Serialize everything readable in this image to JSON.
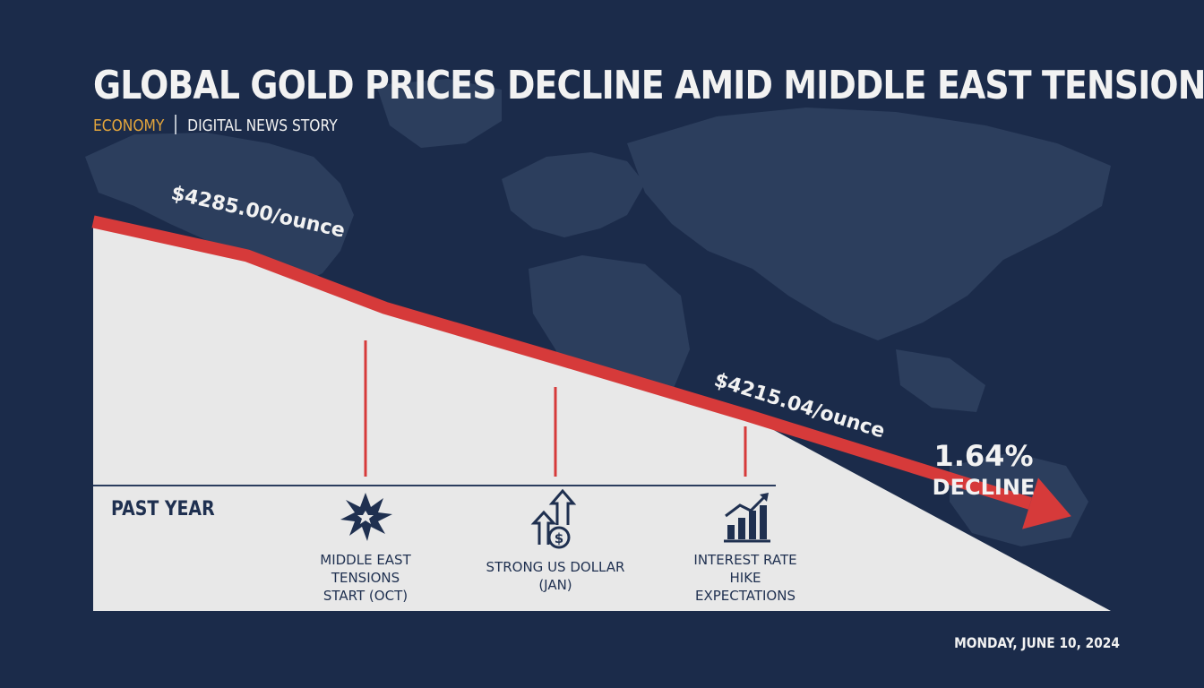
{
  "headline": "GLOBAL GOLD PRICES DECLINE AMID MIDDLE EAST TENSIONS",
  "category": "ECONOMY",
  "story_type": "DIGITAL NEWS STORY",
  "date": "MONDAY, JUNE 10, 2024",
  "colors": {
    "background": "#1b2b4a",
    "map": "#3a4c6b",
    "area_fill": "#e8e8e8",
    "trend_line": "#d63a3a",
    "text": "#f2f2f2",
    "category": "#e3a53c",
    "axis_text": "#1f3050"
  },
  "chart_data": {
    "type": "line",
    "title": "GLOBAL GOLD PRICES DECLINE AMID MIDDLE EAST TENSIONS",
    "period_label": "PAST YEAR",
    "series": [
      {
        "values": [
          4300.0,
          4285.0,
          4262.0,
          4240.0,
          4215.04,
          4176.0
        ]
      }
    ],
    "price_labels": [
      {
        "point_index": 1,
        "text": "$4285.00/ounce"
      },
      {
        "point_index": 4,
        "text": "$4215.04/ounce"
      }
    ],
    "change": {
      "value": "1.64%",
      "label": "DECLINE"
    },
    "events": [
      {
        "label_lines": [
          "MIDDLE EAST",
          "TENSIONS",
          "START (OCT)"
        ],
        "icon": "explosion-icon"
      },
      {
        "label_lines": [
          "STRONG US DOLLAR",
          "(JAN)"
        ],
        "icon": "dollar-growth-icon"
      },
      {
        "label_lines": [
          "INTEREST RATE",
          "HIKE",
          "EXPECTATIONS"
        ],
        "icon": "bar-chart-up-icon"
      }
    ],
    "ylim": [
      4150,
      4310
    ],
    "grid": false,
    "legend": "none"
  }
}
